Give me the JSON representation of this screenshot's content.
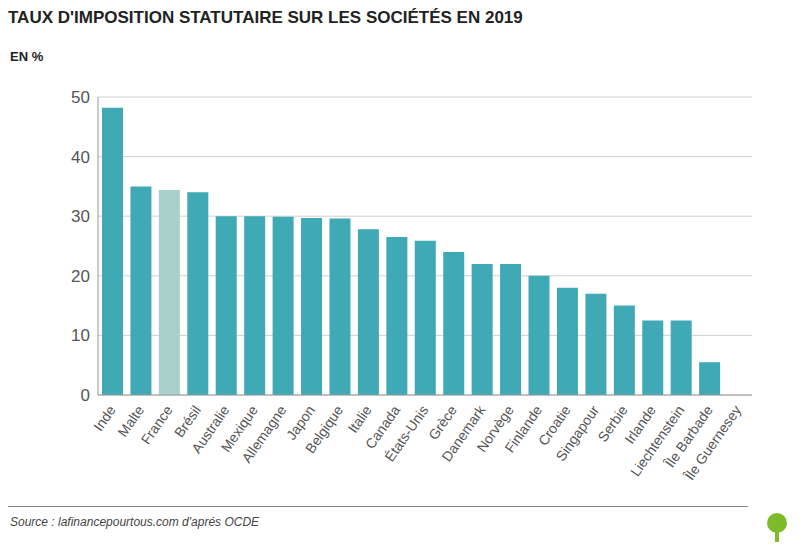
{
  "chart_data": {
    "type": "bar",
    "title": "TAUX D'IMPOSITION STATUTAIRE SUR LES SOCIÉTÉS EN 2019",
    "subtitle": "EN %",
    "source": "Source : lafinancepourtous.com d'aprés OCDE",
    "categories": [
      "Inde",
      "Malte",
      "France",
      "Brésil",
      "Australie",
      "Mexique",
      "Allemagne",
      "Japon",
      "Belgique",
      "Italie",
      "Canada",
      "États-Unis",
      "Grèce",
      "Danemark",
      "Norvège",
      "Finlande",
      "Croatie",
      "Singapour",
      "Serbie",
      "Irlande",
      "Liechtenstein",
      "Île Barbade",
      "Île Guernesey"
    ],
    "values": [
      48.2,
      35,
      34.4,
      34,
      30,
      30,
      29.9,
      29.7,
      29.6,
      27.8,
      26.5,
      25.9,
      24,
      22,
      22,
      20,
      18,
      17,
      15,
      12.5,
      12.5,
      5.5,
      0
    ],
    "colors": [
      "#3fa9b5",
      "#3fa9b5",
      "#a9cfc9",
      "#3fa9b5",
      "#3fa9b5",
      "#3fa9b5",
      "#3fa9b5",
      "#3fa9b5",
      "#3fa9b5",
      "#3fa9b5",
      "#3fa9b5",
      "#3fa9b5",
      "#3fa9b5",
      "#3fa9b5",
      "#3fa9b5",
      "#3fa9b5",
      "#3fa9b5",
      "#3fa9b5",
      "#3fa9b5",
      "#3fa9b5",
      "#3fa9b5",
      "#3fa9b5",
      "#3fa9b5"
    ],
    "ylim": [
      0,
      50
    ],
    "yticks": [
      0,
      10,
      20,
      30,
      40,
      50
    ],
    "grid": true
  }
}
